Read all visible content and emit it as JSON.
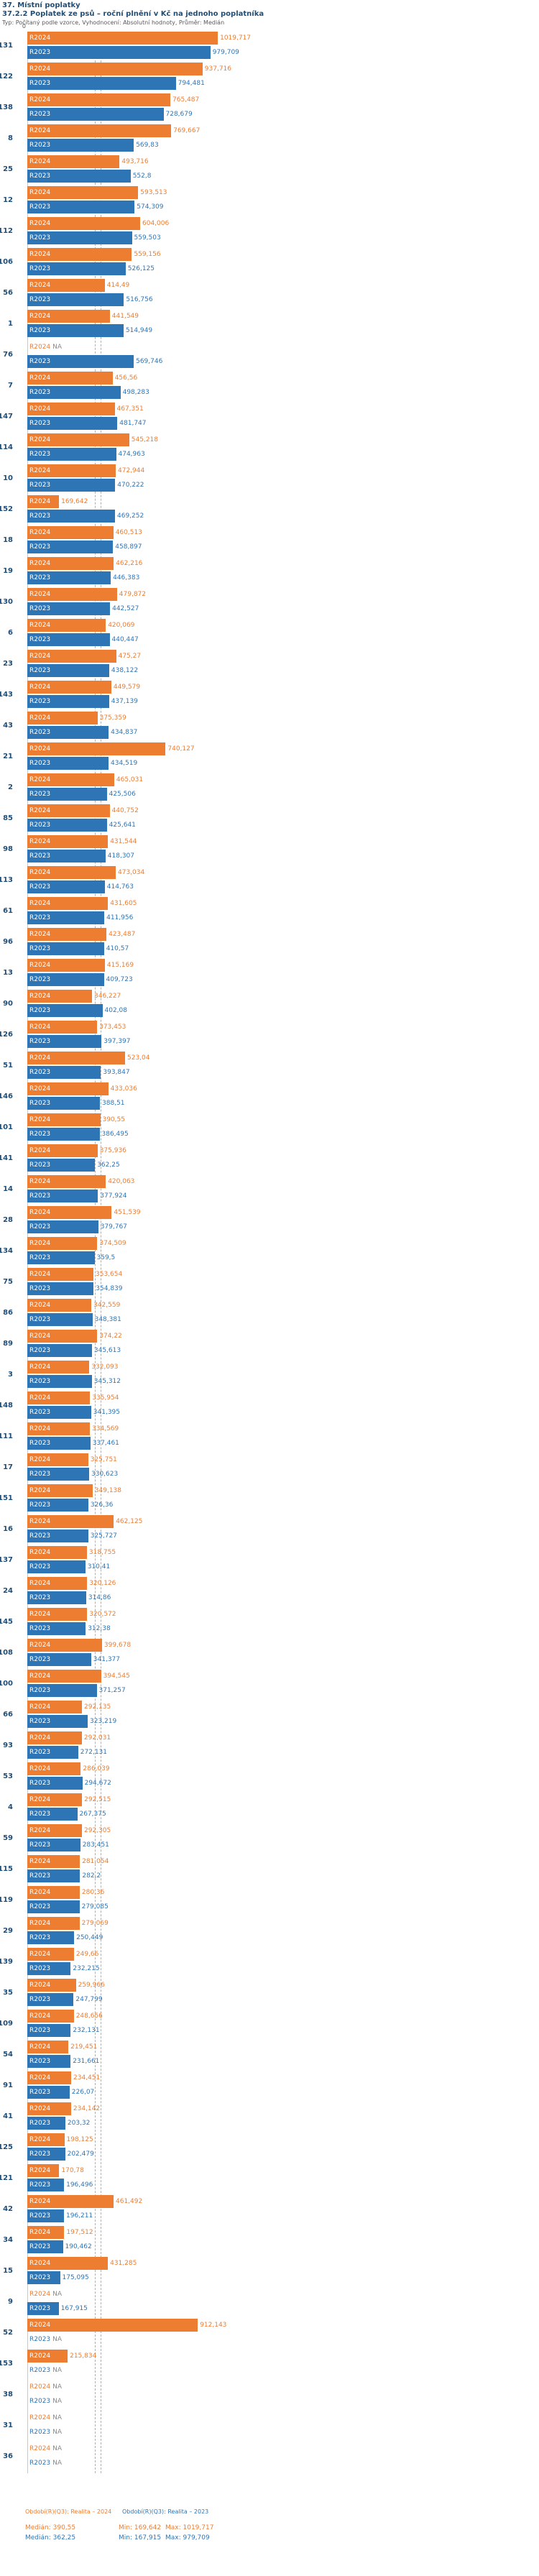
{
  "header": {
    "line1": "37. Místní poplatky",
    "line2": "37.2.2 Poplatek ze psů – roční plnění v Kč na jednoho poplatníka",
    "line3": "Typ: Počítaný podle vzorce, Vyhodnocení: Absolutní hodnoty, Průměr: Medián"
  },
  "axis": {
    "zero": "0"
  },
  "legend": {
    "s2024": "Období(R)(Q3): Realita – 2024",
    "s2023": "Období(R)(Q3): Realita – 2023"
  },
  "stats_2024": {
    "median": "Medián: 390,55",
    "min": "Min: 169,642",
    "max": "Max: 1019,717"
  },
  "stats_2023": {
    "median": "Medián: 362,25",
    "min": "Min: 167,915",
    "max": "Max: 979,709"
  },
  "chart_data": {
    "type": "bar",
    "orientation": "horizontal",
    "title": "37.2.2 Poplatek ze psů – roční plnění v Kč na jednoho poplatníka",
    "unit": "Kč na jednoho poplatníka",
    "colors": {
      "r2024": "#ed7d31",
      "r2023": "#2e75b6",
      "na": "#8a8a8a"
    },
    "bar_labels": {
      "s2024": "R2024",
      "s2023": "R2023"
    },
    "na_label": "NA",
    "x_min": 0,
    "median_lines": [
      390.55,
      362.25
    ],
    "groups": [
      {
        "id": "131",
        "v2024": "1019,717",
        "v2023": "979,709"
      },
      {
        "id": "122",
        "v2024": "937,716",
        "v2023": "794,481"
      },
      {
        "id": "138",
        "v2024": "765,487",
        "v2023": "728,679"
      },
      {
        "id": "8",
        "v2024": "769,667",
        "v2023": "569,83"
      },
      {
        "id": "25",
        "v2024": "493,716",
        "v2023": "552,8"
      },
      {
        "id": "12",
        "v2024": "593,513",
        "v2023": "574,309"
      },
      {
        "id": "112",
        "v2024": "604,006",
        "v2023": "559,503"
      },
      {
        "id": "106",
        "v2024": "559,156",
        "v2023": "526,125"
      },
      {
        "id": "56",
        "v2024": "414,49",
        "v2023": "516,756"
      },
      {
        "id": "1",
        "v2024": "441,549",
        "v2023": "514,949"
      },
      {
        "id": "76",
        "v2024": "NA",
        "v2023": "569,746"
      },
      {
        "id": "7",
        "v2024": "456,56",
        "v2023": "498,283"
      },
      {
        "id": "147",
        "v2024": "467,351",
        "v2023": "481,747"
      },
      {
        "id": "114",
        "v2024": "545,218",
        "v2023": "474,963"
      },
      {
        "id": "10",
        "v2024": "472,944",
        "v2023": "470,222"
      },
      {
        "id": "152",
        "v2024": "169,642",
        "v2023": "469,252"
      },
      {
        "id": "18",
        "v2024": "460,513",
        "v2023": "458,897"
      },
      {
        "id": "19",
        "v2024": "462,216",
        "v2023": "446,383"
      },
      {
        "id": "130",
        "v2024": "479,872",
        "v2023": "442,527"
      },
      {
        "id": "6",
        "v2024": "420,069",
        "v2023": "440,447"
      },
      {
        "id": "23",
        "v2024": "475,27",
        "v2023": "438,122"
      },
      {
        "id": "143",
        "v2024": "449,579",
        "v2023": "437,139"
      },
      {
        "id": "43",
        "v2024": "375,359",
        "v2023": "434,837"
      },
      {
        "id": "21",
        "v2024": "740,127",
        "v2023": "434,519"
      },
      {
        "id": "2",
        "v2024": "465,031",
        "v2023": "425,506"
      },
      {
        "id": "85",
        "v2024": "440,752",
        "v2023": "425,641"
      },
      {
        "id": "98",
        "v2024": "431,544",
        "v2023": "418,307"
      },
      {
        "id": "113",
        "v2024": "473,034",
        "v2023": "414,763"
      },
      {
        "id": "61",
        "v2024": "431,605",
        "v2023": "411,956"
      },
      {
        "id": "96",
        "v2024": "423,487",
        "v2023": "410,57"
      },
      {
        "id": "13",
        "v2024": "415,169",
        "v2023": "409,723"
      },
      {
        "id": "90",
        "v2024": "346,227",
        "v2023": "402,08"
      },
      {
        "id": "126",
        "v2024": "373,453",
        "v2023": "397,397"
      },
      {
        "id": "51",
        "v2024": "523,04",
        "v2023": "393,847"
      },
      {
        "id": "146",
        "v2024": "433,036",
        "v2023": "388,51"
      },
      {
        "id": "101",
        "v2024": "390,55",
        "v2023": "386,495"
      },
      {
        "id": "141",
        "v2024": "375,936",
        "v2023": "362,25"
      },
      {
        "id": "14",
        "v2024": "420,063",
        "v2023": "377,924"
      },
      {
        "id": "28",
        "v2024": "451,539",
        "v2023": "379,767"
      },
      {
        "id": "134",
        "v2024": "374,509",
        "v2023": "359,5"
      },
      {
        "id": "75",
        "v2024": "353,654",
        "v2023": "354,839"
      },
      {
        "id": "86",
        "v2024": "342,559",
        "v2023": "348,381"
      },
      {
        "id": "89",
        "v2024": "374,22",
        "v2023": "345,613"
      },
      {
        "id": "3",
        "v2024": "332,093",
        "v2023": "345,312"
      },
      {
        "id": "148",
        "v2024": "335,954",
        "v2023": "341,395"
      },
      {
        "id": "111",
        "v2024": "334,569",
        "v2023": "337,461"
      },
      {
        "id": "17",
        "v2024": "325,751",
        "v2023": "330,623"
      },
      {
        "id": "151",
        "v2024": "349,138",
        "v2023": "326,36"
      },
      {
        "id": "16",
        "v2024": "462,125",
        "v2023": "325,727"
      },
      {
        "id": "137",
        "v2024": "318,755",
        "v2023": "310,41"
      },
      {
        "id": "24",
        "v2024": "320,126",
        "v2023": "314,86"
      },
      {
        "id": "145",
        "v2024": "320,572",
        "v2023": "312,38"
      },
      {
        "id": "108",
        "v2024": "399,678",
        "v2023": "341,377"
      },
      {
        "id": "100",
        "v2024": "394,545",
        "v2023": "371,257"
      },
      {
        "id": "66",
        "v2024": "292,135",
        "v2023": "323,219"
      },
      {
        "id": "93",
        "v2024": "292,031",
        "v2023": "272,131"
      },
      {
        "id": "53",
        "v2024": "286,039",
        "v2023": "294,672"
      },
      {
        "id": "4",
        "v2024": "292,515",
        "v2023": "267,375"
      },
      {
        "id": "59",
        "v2024": "292,305",
        "v2023": "283,451"
      },
      {
        "id": "115",
        "v2024": "281,054",
        "v2023": "282,2"
      },
      {
        "id": "119",
        "v2024": "280,36",
        "v2023": "279,085"
      },
      {
        "id": "29",
        "v2024": "279,069",
        "v2023": "250,449"
      },
      {
        "id": "139",
        "v2024": "249,66",
        "v2023": "232,215"
      },
      {
        "id": "35",
        "v2024": "259,966",
        "v2023": "247,799"
      },
      {
        "id": "109",
        "v2024": "248,656",
        "v2023": "232,131"
      },
      {
        "id": "54",
        "v2024": "219,451",
        "v2023": "231,661"
      },
      {
        "id": "91",
        "v2024": "234,451",
        "v2023": "226,07"
      },
      {
        "id": "41",
        "v2024": "234,142",
        "v2023": "203,32"
      },
      {
        "id": "125",
        "v2024": "198,125",
        "v2023": "202,479"
      },
      {
        "id": "121",
        "v2024": "170,78",
        "v2023": "196,496"
      },
      {
        "id": "42",
        "v2024": "461,492",
        "v2023": "196,211"
      },
      {
        "id": "34",
        "v2024": "197,512",
        "v2023": "190,462"
      },
      {
        "id": "15",
        "v2024": "431,285",
        "v2023": "175,095"
      },
      {
        "id": "9",
        "v2024": "NA",
        "v2023": "167,915"
      },
      {
        "id": "52",
        "v2024": "912,143",
        "v2023": "NA"
      },
      {
        "id": "153",
        "v2024": "215,834",
        "v2023": "NA"
      },
      {
        "id": "38",
        "v2024": "NA",
        "v2023": "NA"
      },
      {
        "id": "31",
        "v2024": "NA",
        "v2023": "NA"
      },
      {
        "id": "36",
        "v2024": "NA",
        "v2023": "NA"
      }
    ]
  }
}
